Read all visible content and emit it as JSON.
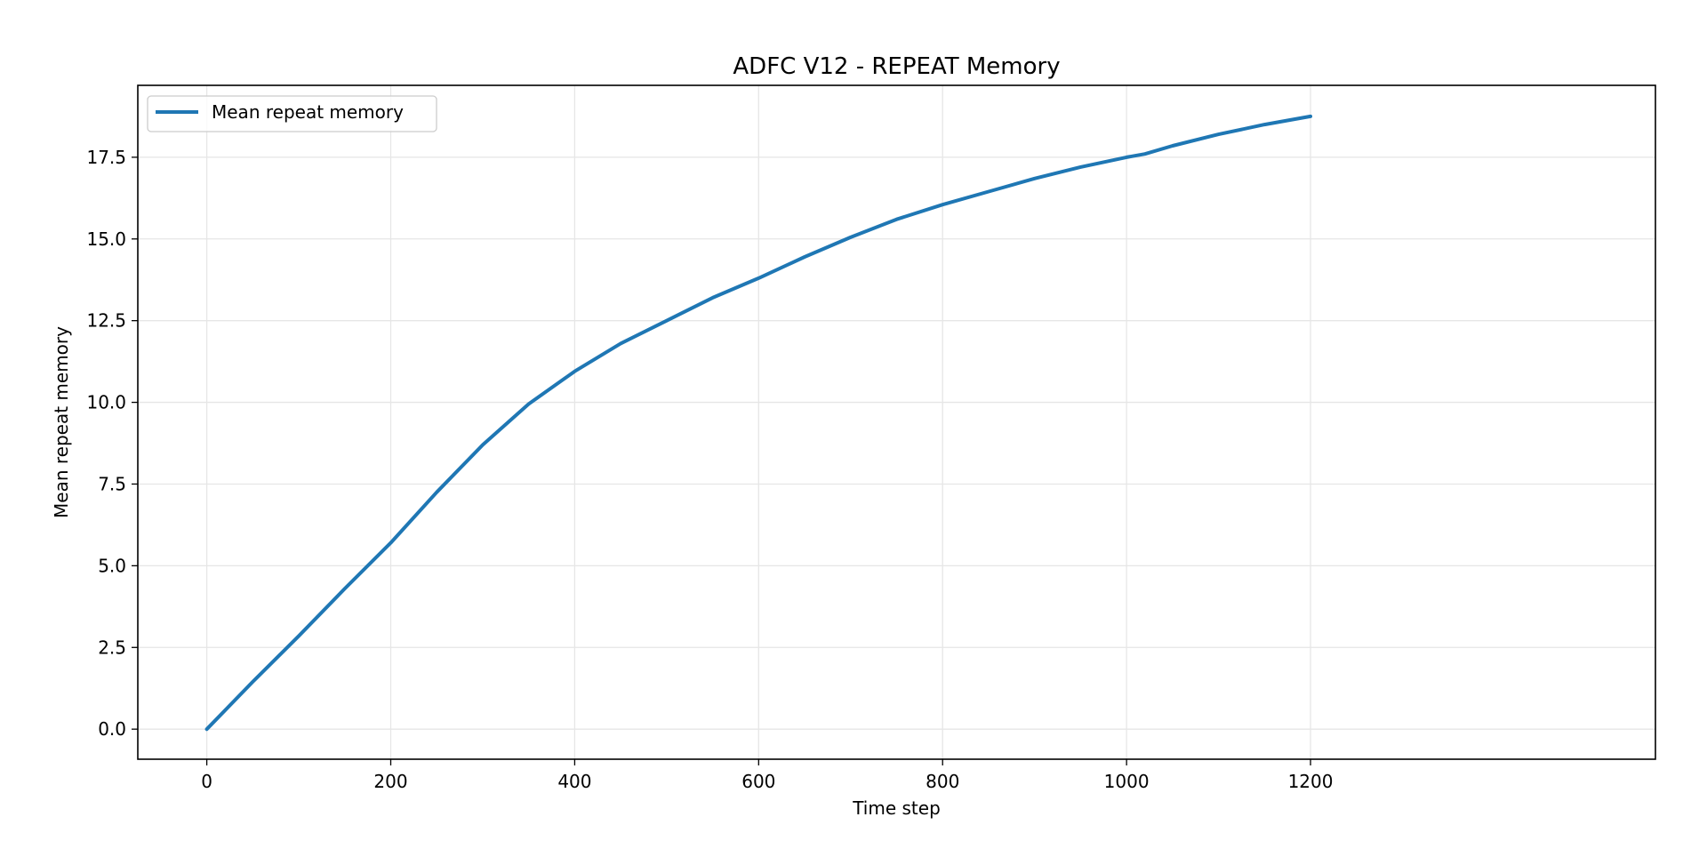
{
  "chart_data": {
    "type": "line",
    "title": "ADFC V12 - REPEAT Memory",
    "xlabel": "Time step",
    "ylabel": "Mean repeat memory",
    "xlim": [
      -75,
      1575
    ],
    "ylim": [
      -0.92,
      19.7
    ],
    "xticks": [
      0,
      200,
      400,
      600,
      800,
      1000,
      1200
    ],
    "xtick_labels": [
      "0",
      "200",
      "400",
      "600",
      "800",
      "1000",
      "1200"
    ],
    "yticks": [
      0.0,
      2.5,
      5.0,
      7.5,
      10.0,
      12.5,
      15.0,
      17.5
    ],
    "ytick_labels": [
      "0.0",
      "2.5",
      "5.0",
      "7.5",
      "10.0",
      "12.5",
      "15.0",
      "17.5"
    ],
    "grid": true,
    "legend_position": "upper-left",
    "line_color": "#1f77b4",
    "series": [
      {
        "name": "Mean repeat memory",
        "x": [
          0,
          50,
          100,
          150,
          200,
          250,
          300,
          350,
          400,
          450,
          500,
          550,
          600,
          650,
          700,
          750,
          800,
          850,
          900,
          950,
          1000,
          1020,
          1050,
          1100,
          1150,
          1200
        ],
        "y": [
          0.0,
          1.45,
          2.85,
          4.3,
          5.7,
          7.25,
          8.7,
          9.95,
          10.95,
          11.8,
          12.5,
          13.2,
          13.8,
          14.45,
          15.05,
          15.6,
          16.05,
          16.45,
          16.85,
          17.2,
          17.5,
          17.6,
          17.85,
          18.2,
          18.5,
          18.75
        ]
      }
    ]
  }
}
